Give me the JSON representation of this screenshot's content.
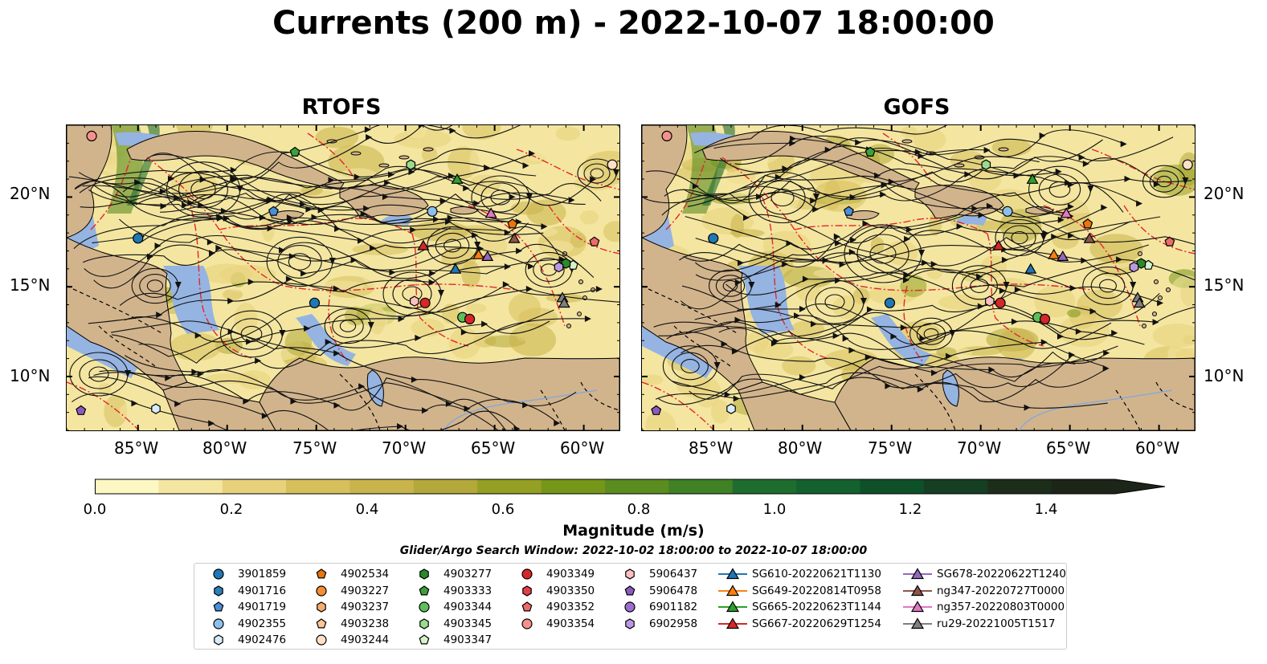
{
  "title": "Currents (200 m) - 2022-10-07 18:00:00",
  "panels": [
    {
      "title": "RTOFS",
      "left": true
    },
    {
      "title": "GOFS",
      "left": false
    }
  ],
  "lat_labels": [
    "20°N",
    "15°N",
    "10°N"
  ],
  "lon_labels": [
    "85°W",
    "80°W",
    "75°W",
    "70°W",
    "65°W",
    "60°W"
  ],
  "colorbar": {
    "label": "Magnitude (m/s)",
    "ticks": [
      "0.0",
      "0.2",
      "0.4",
      "0.6",
      "0.8",
      "1.0",
      "1.2",
      "1.4"
    ],
    "colors": [
      "#fdf7c3",
      "#f4e6a0",
      "#e7d27b",
      "#d7bf5c",
      "#c9b34b",
      "#b3a83a",
      "#93a023",
      "#769619",
      "#5a8c1f",
      "#3f8124",
      "#1f6d2e",
      "#14602e",
      "#0e5028",
      "#153e22",
      "#1c2e1a",
      "#1c2517"
    ]
  },
  "search_window": "Glider/Argo Search Window: 2022-10-02 18:00:00 to 2022-10-07 18:00:00",
  "legend": [
    {
      "label": "3901859",
      "marker": "circle",
      "color": "#1f77b4"
    },
    {
      "label": "4901716",
      "marker": "hexagon",
      "color": "#2c7fb8"
    },
    {
      "label": "4901719",
      "marker": "pentagon",
      "color": "#4a90d9"
    },
    {
      "label": "4902355",
      "marker": "circle",
      "color": "#8cc0ea"
    },
    {
      "label": "4902476",
      "marker": "hexagon",
      "color": "#d8ecfa"
    },
    {
      "label": "4902534",
      "marker": "pentagon",
      "color": "#e8750d"
    },
    {
      "label": "4903227",
      "marker": "circle",
      "color": "#f58d35"
    },
    {
      "label": "4903237",
      "marker": "hexagon",
      "color": "#f7ad6a"
    },
    {
      "label": "4903238",
      "marker": "pentagon",
      "color": "#fac79b"
    },
    {
      "label": "4903244",
      "marker": "circle",
      "color": "#fde0c8"
    },
    {
      "label": "4903277",
      "marker": "hexagon",
      "color": "#2a8a2a"
    },
    {
      "label": "4903333",
      "marker": "pentagon",
      "color": "#3ca03c"
    },
    {
      "label": "4903344",
      "marker": "circle",
      "color": "#5cbf5c"
    },
    {
      "label": "4903345",
      "marker": "hexagon",
      "color": "#98dc8c"
    },
    {
      "label": "4903347",
      "marker": "pentagon",
      "color": "#d6f3cc"
    },
    {
      "label": "4903349",
      "marker": "circle",
      "color": "#d62728"
    },
    {
      "label": "4903350",
      "marker": "hexagon",
      "color": "#e0404a"
    },
    {
      "label": "4903352",
      "marker": "pentagon",
      "color": "#ec6b6b"
    },
    {
      "label": "4903354",
      "marker": "circle",
      "color": "#f4918e"
    },
    {
      "label": "5906437",
      "marker": "hexagon",
      "color": "#fbc0c0"
    },
    {
      "label": "5906478",
      "marker": "pentagon",
      "color": "#8c5bc0"
    },
    {
      "label": "6901182",
      "marker": "circle",
      "color": "#9b6fcf"
    },
    {
      "label": "6902958",
      "marker": "hexagon",
      "color": "#b99ae2"
    },
    {
      "label": "SG610-20220621T1130",
      "marker": "triangle",
      "color": "#1f77b4"
    },
    {
      "label": "SG649-20220814T0958",
      "marker": "triangle",
      "color": "#ff7f0e"
    },
    {
      "label": "SG665-20220623T1144",
      "marker": "triangle",
      "color": "#2ca02c"
    },
    {
      "label": "SG667-20220629T1254",
      "marker": "triangle",
      "color": "#d62728"
    },
    {
      "label": "SG678-20220622T1240",
      "marker": "triangle",
      "color": "#9467bd"
    },
    {
      "label": "ng347-20220727T0000",
      "marker": "triangle",
      "color": "#8c564b"
    },
    {
      "label": "ng357-20220803T0000",
      "marker": "triangle",
      "color": "#e377c2"
    },
    {
      "label": "ru29-20221005T1517",
      "marker": "triangle",
      "color": "#7f7f7f"
    }
  ],
  "map_colors": {
    "land": "#d2b48c",
    "shelf": "#95b4e2",
    "ocean_low": "#f4e6a0",
    "boundary": "#e3262d"
  }
}
